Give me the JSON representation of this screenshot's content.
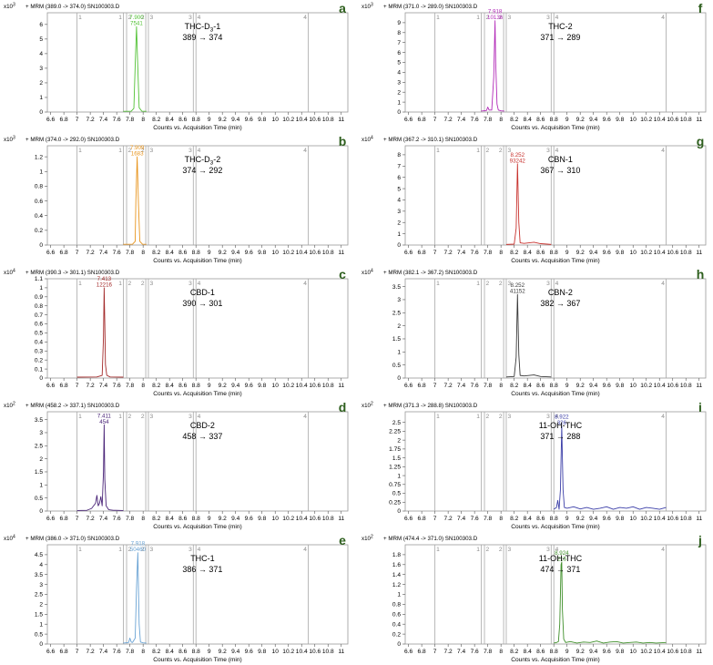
{
  "figure": {
    "shared": {
      "exp_prefix": "x10",
      "xlabel": "Counts vs. Acquisition Time (min)",
      "x_ticks": [
        "6.6",
        "6.8",
        "7",
        "7.2",
        "7.4",
        "7.6",
        "7.8",
        "8",
        "8.2",
        "8.4",
        "8.6",
        "8.8",
        "9",
        "9.2",
        "9.4",
        "9.6",
        "9.8",
        "10",
        "10.2",
        "10.4",
        "10.6",
        "10.8",
        "11"
      ],
      "xlim": [
        6.55,
        11.1
      ]
    }
  },
  "chart_data": [
    {
      "type": "line",
      "panel_letter": "a",
      "header": "+ MRM (389.0 -> 374.0) SN100303.D",
      "exponent": "3",
      "compound_prefix": "THC-D",
      "compound_sub": "3",
      "compound_suffix": "-1",
      "transition": "389 → 374",
      "ylim": [
        0,
        6.8
      ],
      "y_ticks": [
        0,
        1,
        2,
        3,
        4,
        5,
        6
      ],
      "line_color": "#52c235",
      "peak": {
        "rt": "7.900",
        "area": "7541"
      },
      "markers": [
        {
          "x": 7.0,
          "label": "1"
        },
        {
          "x": 7.7,
          "label": "1"
        },
        {
          "x": 7.75,
          "label": "2"
        },
        {
          "x": 8.04,
          "label": "2"
        },
        {
          "x": 8.08,
          "label": "3"
        },
        {
          "x": 8.76,
          "label": "3"
        },
        {
          "x": 8.8,
          "label": "4"
        },
        {
          "x": 10.5,
          "label": "4"
        }
      ],
      "series": {
        "x": [
          7.7,
          7.82,
          7.86,
          7.88,
          7.9,
          7.92,
          7.94,
          7.98,
          8.05
        ],
        "y": [
          0.05,
          0.06,
          0.25,
          3.2,
          5.85,
          3.0,
          0.3,
          0.06,
          0.05
        ]
      }
    },
    {
      "type": "line",
      "panel_letter": "b",
      "header": "+ MRM (374.0 -> 292.0) SN100303.D",
      "exponent": "3",
      "compound_prefix": "THC-D",
      "compound_sub": "3",
      "compound_suffix": "-2",
      "transition": "374 → 292",
      "ylim": [
        0,
        1.35
      ],
      "y_ticks": [
        0,
        0.2,
        0.4,
        0.6,
        0.8,
        1,
        1.2
      ],
      "line_color": "#e8951e",
      "peak": {
        "rt": "7.909",
        "area": "1683"
      },
      "markers": [
        {
          "x": 7.0,
          "label": "1"
        },
        {
          "x": 7.7,
          "label": "1"
        },
        {
          "x": 7.75,
          "label": "2"
        },
        {
          "x": 8.04,
          "label": "2"
        },
        {
          "x": 8.08,
          "label": "3"
        },
        {
          "x": 8.76,
          "label": "3"
        },
        {
          "x": 8.8,
          "label": "4"
        },
        {
          "x": 10.5,
          "label": "4"
        }
      ],
      "series": {
        "x": [
          7.7,
          7.84,
          7.88,
          7.89,
          7.91,
          7.93,
          7.95,
          7.99,
          8.05
        ],
        "y": [
          0.01,
          0.012,
          0.05,
          0.6,
          1.2,
          0.55,
          0.05,
          0.012,
          0.01
        ]
      }
    },
    {
      "type": "line",
      "panel_letter": "c",
      "header": "+ MRM (390.3 -> 301.1) SN100303.D",
      "exponent": "4",
      "compound": "CBD-1",
      "transition": "390 → 301",
      "ylim": [
        0,
        1.1
      ],
      "y_ticks": [
        0,
        0.1,
        0.2,
        0.3,
        0.4,
        0.5,
        0.6,
        0.7,
        0.8,
        0.9,
        1,
        1.1
      ],
      "line_color": "#a32a2a",
      "peak": {
        "rt": "7.413",
        "area": "12216"
      },
      "markers": [
        {
          "x": 7.0,
          "label": "1"
        },
        {
          "x": 7.7,
          "label": "1"
        },
        {
          "x": 7.75,
          "label": "2"
        },
        {
          "x": 8.04,
          "label": "2"
        },
        {
          "x": 8.08,
          "label": "3"
        },
        {
          "x": 8.76,
          "label": "3"
        },
        {
          "x": 8.8,
          "label": "4"
        },
        {
          "x": 10.5,
          "label": "4"
        }
      ],
      "series": {
        "x": [
          7.0,
          7.3,
          7.38,
          7.4,
          7.41,
          7.42,
          7.43,
          7.45,
          7.5,
          7.7
        ],
        "y": [
          0.01,
          0.012,
          0.03,
          0.45,
          1.0,
          0.6,
          0.15,
          0.03,
          0.012,
          0.01
        ]
      }
    },
    {
      "type": "line",
      "panel_letter": "d",
      "header": "+ MRM (458.2 -> 337.1) SN100303.D",
      "exponent": "2",
      "compound": "CBD-2",
      "transition": "458 → 337",
      "ylim": [
        0,
        3.8
      ],
      "y_ticks": [
        0,
        0.5,
        1,
        1.5,
        2,
        2.5,
        3,
        3.5
      ],
      "line_color": "#4a2478",
      "peak": {
        "rt": "7.411",
        "area": "454"
      },
      "markers": [
        {
          "x": 7.0,
          "label": "1"
        },
        {
          "x": 7.7,
          "label": "1"
        },
        {
          "x": 7.75,
          "label": "2"
        },
        {
          "x": 8.04,
          "label": "2"
        },
        {
          "x": 8.08,
          "label": "3"
        },
        {
          "x": 8.76,
          "label": "3"
        },
        {
          "x": 8.8,
          "label": "4"
        },
        {
          "x": 10.5,
          "label": "4"
        }
      ],
      "series": {
        "x": [
          7.0,
          7.15,
          7.22,
          7.28,
          7.3,
          7.32,
          7.34,
          7.36,
          7.38,
          7.4,
          7.41,
          7.42,
          7.44,
          7.48,
          7.55,
          7.7
        ],
        "y": [
          0.02,
          0.03,
          0.1,
          0.3,
          0.6,
          0.2,
          0.3,
          0.55,
          0.2,
          1.5,
          3.3,
          1.2,
          0.2,
          0.05,
          0.03,
          0.02
        ]
      }
    },
    {
      "type": "line",
      "panel_letter": "e",
      "header": "+ MRM (386.0 -> 371.0) SN100303.D",
      "exponent": "4",
      "compound": "THC-1",
      "transition": "386 → 371",
      "ylim": [
        0,
        5.0
      ],
      "y_ticks": [
        0,
        0.5,
        1,
        1.5,
        2,
        2.5,
        3,
        3.5,
        4,
        4.5
      ],
      "line_color": "#6aa3d4",
      "peak": {
        "rt": "7.918",
        "area": "50460"
      },
      "markers": [
        {
          "x": 7.0,
          "label": "1"
        },
        {
          "x": 7.7,
          "label": "1"
        },
        {
          "x": 7.75,
          "label": "2"
        },
        {
          "x": 8.04,
          "label": "2"
        },
        {
          "x": 8.08,
          "label": "3"
        },
        {
          "x": 8.76,
          "label": "3"
        },
        {
          "x": 8.8,
          "label": "4"
        },
        {
          "x": 10.5,
          "label": "4"
        }
      ],
      "series": {
        "x": [
          7.7,
          7.78,
          7.8,
          7.82,
          7.84,
          7.88,
          7.9,
          7.92,
          7.94,
          7.96,
          8.0,
          8.05
        ],
        "y": [
          0.05,
          0.08,
          0.3,
          0.1,
          0.08,
          0.3,
          2.8,
          4.6,
          1.0,
          0.1,
          0.06,
          0.05
        ]
      }
    },
    {
      "type": "line",
      "panel_letter": "f",
      "header": "+ MRM (371.0 -> 289.0) SN100303.D",
      "exponent": "3",
      "compound": "THC-2",
      "transition": "371 → 289",
      "ylim": [
        0,
        10
      ],
      "y_ticks": [
        0,
        1,
        2,
        3,
        4,
        5,
        6,
        7,
        8,
        9
      ],
      "line_color": "#b22ab8",
      "peak": {
        "rt": "7.918",
        "area": "10136"
      },
      "markers": [
        {
          "x": 7.0,
          "label": "1"
        },
        {
          "x": 7.7,
          "label": "1"
        },
        {
          "x": 7.75,
          "label": "2"
        },
        {
          "x": 8.04,
          "label": "2"
        },
        {
          "x": 8.08,
          "label": "3"
        },
        {
          "x": 8.76,
          "label": "3"
        },
        {
          "x": 8.8,
          "label": "4"
        },
        {
          "x": 10.5,
          "label": "4"
        }
      ],
      "series": {
        "x": [
          7.7,
          7.78,
          7.8,
          7.82,
          7.86,
          7.89,
          7.91,
          7.92,
          7.94,
          7.96,
          8.0,
          8.05
        ],
        "y": [
          0.1,
          0.15,
          0.5,
          0.2,
          0.2,
          3.5,
          9.2,
          5.0,
          0.8,
          0.2,
          0.12,
          0.1
        ]
      }
    },
    {
      "type": "line",
      "panel_letter": "g",
      "header": "+ MRM (367.2 -> 310.1) SN100303.D",
      "exponent": "4",
      "compound": "CBN-1",
      "transition": "367 → 310",
      "ylim": [
        0,
        8.8
      ],
      "y_ticks": [
        0,
        1,
        2,
        3,
        4,
        5,
        6,
        7,
        8
      ],
      "line_color": "#c8322e",
      "peak": {
        "rt": "8.252",
        "area": "93242"
      },
      "markers": [
        {
          "x": 7.0,
          "label": "1"
        },
        {
          "x": 7.7,
          "label": "1"
        },
        {
          "x": 7.75,
          "label": "2"
        },
        {
          "x": 8.04,
          "label": "2"
        },
        {
          "x": 8.08,
          "label": "3"
        },
        {
          "x": 8.76,
          "label": "3"
        },
        {
          "x": 8.8,
          "label": "4"
        },
        {
          "x": 10.5,
          "label": "4"
        }
      ],
      "series": {
        "x": [
          8.08,
          8.2,
          8.23,
          8.25,
          8.27,
          8.29,
          8.35,
          8.5,
          8.6,
          8.7,
          8.76
        ],
        "y": [
          0.05,
          0.08,
          1.5,
          7.2,
          2.0,
          0.2,
          0.15,
          0.25,
          0.12,
          0.08,
          0.05
        ]
      }
    },
    {
      "type": "line",
      "panel_letter": "h",
      "header": "+ MRM (382.1 -> 367.2) SN100303.D",
      "exponent": "4",
      "compound": "CBN-2",
      "transition": "382 → 367",
      "ylim": [
        0,
        3.8
      ],
      "y_ticks": [
        0,
        0.5,
        1,
        1.5,
        2,
        2.5,
        3,
        3.5
      ],
      "line_color": "#3a3a3a",
      "peak": {
        "rt": "8.252",
        "area": "41152"
      },
      "markers": [
        {
          "x": 7.0,
          "label": "1"
        },
        {
          "x": 7.7,
          "label": "1"
        },
        {
          "x": 7.75,
          "label": "2"
        },
        {
          "x": 8.04,
          "label": "2"
        },
        {
          "x": 8.08,
          "label": "3"
        },
        {
          "x": 8.76,
          "label": "3"
        },
        {
          "x": 8.8,
          "label": "4"
        },
        {
          "x": 10.5,
          "label": "4"
        }
      ],
      "series": {
        "x": [
          8.08,
          8.2,
          8.23,
          8.25,
          8.27,
          8.29,
          8.35,
          8.5,
          8.6,
          8.76
        ],
        "y": [
          0.04,
          0.06,
          0.8,
          3.2,
          0.9,
          0.1,
          0.08,
          0.12,
          0.06,
          0.04
        ]
      }
    },
    {
      "type": "line",
      "panel_letter": "i",
      "header": "+ MRM (371.3 -> 288.8) SN100303.D",
      "exponent": "2",
      "compound": "11-OH-THC",
      "transition": "371 → 288",
      "ylim": [
        0,
        2.8
      ],
      "y_ticks": [
        0,
        0.25,
        0.5,
        0.75,
        1,
        1.25,
        1.5,
        1.75,
        2,
        2.25,
        2.5
      ],
      "line_color": "#3c3fa8",
      "peak": {
        "rt": "8.922",
        "area": "326"
      },
      "markers": [
        {
          "x": 7.0,
          "label": "1"
        },
        {
          "x": 7.7,
          "label": "1"
        },
        {
          "x": 7.75,
          "label": "2"
        },
        {
          "x": 8.04,
          "label": "2"
        },
        {
          "x": 8.08,
          "label": "3"
        },
        {
          "x": 8.76,
          "label": "3"
        },
        {
          "x": 8.8,
          "label": "4"
        },
        {
          "x": 10.5,
          "label": "4"
        }
      ],
      "series": {
        "x": [
          8.8,
          8.84,
          8.86,
          8.88,
          8.9,
          8.92,
          8.94,
          8.96,
          9.0,
          9.1,
          9.2,
          9.3,
          9.4,
          9.5,
          9.6,
          9.7,
          9.8,
          9.9,
          10.0,
          10.1,
          10.2,
          10.3,
          10.4,
          10.5
        ],
        "y": [
          0.05,
          0.1,
          0.3,
          0.05,
          0.6,
          2.4,
          0.6,
          0.1,
          0.08,
          0.12,
          0.06,
          0.1,
          0.05,
          0.08,
          0.12,
          0.05,
          0.1,
          0.08,
          0.12,
          0.05,
          0.1,
          0.08,
          0.05,
          0.1
        ]
      }
    },
    {
      "type": "line",
      "panel_letter": "j",
      "header": "+ MRM (474.4 -> 371.0) SN100303.D",
      "exponent": "2",
      "compound": "11-OH-THC",
      "transition": "474 → 371",
      "ylim": [
        0,
        2.0
      ],
      "y_ticks": [
        0,
        0.2,
        0.4,
        0.6,
        0.8,
        1,
        1.2,
        1.4,
        1.6,
        1.8
      ],
      "line_color": "#3f8f2a",
      "peak": {
        "rt": "8.924",
        "area": "215"
      },
      "markers": [
        {
          "x": 7.0,
          "label": "1"
        },
        {
          "x": 7.7,
          "label": "1"
        },
        {
          "x": 7.75,
          "label": "2"
        },
        {
          "x": 8.04,
          "label": "2"
        },
        {
          "x": 8.08,
          "label": "3"
        },
        {
          "x": 8.76,
          "label": "3"
        },
        {
          "x": 8.8,
          "label": "4"
        },
        {
          "x": 10.5,
          "label": "4"
        }
      ],
      "series": {
        "x": [
          8.8,
          8.84,
          8.87,
          8.89,
          8.91,
          8.92,
          8.93,
          8.95,
          8.98,
          9.05,
          9.15,
          9.25,
          9.35,
          9.45,
          9.55,
          9.65,
          9.75,
          9.85,
          9.95,
          10.05,
          10.15,
          10.25,
          10.35,
          10.5
        ],
        "y": [
          0.02,
          0.03,
          0.05,
          0.4,
          1.6,
          1.65,
          0.7,
          0.1,
          0.03,
          0.05,
          0.02,
          0.04,
          0.03,
          0.06,
          0.02,
          0.04,
          0.05,
          0.02,
          0.03,
          0.04,
          0.02,
          0.03,
          0.02,
          0.03
        ]
      }
    }
  ]
}
